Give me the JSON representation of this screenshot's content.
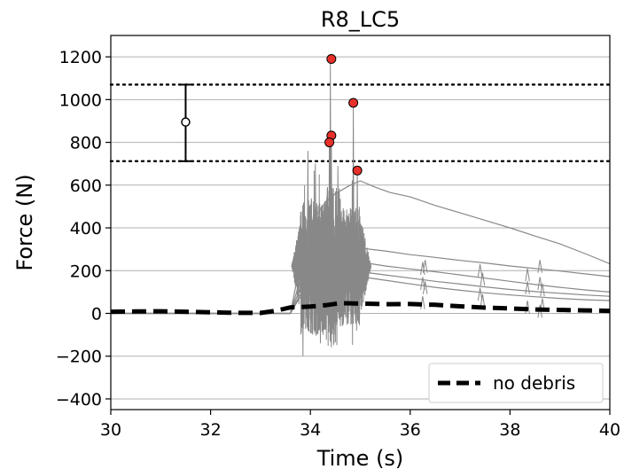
{
  "chart_data": {
    "type": "line",
    "title": "R8_LC5",
    "xlabel": "Time (s)",
    "ylabel": "Force (N)",
    "xlim": [
      30,
      40
    ],
    "ylim": [
      -450,
      1300
    ],
    "xticks": [
      30,
      32,
      34,
      36,
      38,
      40
    ],
    "yticks": [
      -400,
      -200,
      0,
      200,
      400,
      600,
      800,
      1000,
      1200
    ],
    "ytick_labels": [
      "−400",
      "−200",
      "0",
      "200",
      "400",
      "600",
      "800",
      "1000",
      "1200"
    ],
    "grid": "horizontal",
    "legend": {
      "position": "bottom-right",
      "entries": [
        {
          "label": "no debris",
          "style": "dashed",
          "color": "#000000"
        }
      ]
    },
    "reference_lines": [
      {
        "y": 1070,
        "style": "dotted",
        "color": "#000000"
      },
      {
        "y": 712,
        "style": "dotted",
        "color": "#000000"
      }
    ],
    "error_bar": {
      "x": 31.5,
      "y": 895,
      "low": 712,
      "high": 1070,
      "color": "#000000"
    },
    "peak_markers": [
      {
        "x": 34.42,
        "y": 1190
      },
      {
        "x": 34.86,
        "y": 985
      },
      {
        "x": 34.42,
        "y": 832
      },
      {
        "x": 34.38,
        "y": 800
      },
      {
        "x": 34.94,
        "y": 668
      }
    ],
    "colors": {
      "trials": "#888888",
      "no_debris": "#000000",
      "peak_marker": "#e8302a"
    },
    "series": [
      {
        "name": "no debris",
        "x": [
          30,
          30.5,
          31,
          31.5,
          32,
          32.5,
          33,
          33.3,
          33.6,
          34,
          34.3,
          34.6,
          35,
          35.5,
          36,
          36.5,
          37,
          37.5,
          38,
          38.5,
          39,
          39.5,
          40
        ],
        "y": [
          8,
          9,
          10,
          8,
          5,
          3,
          2,
          12,
          28,
          32,
          38,
          48,
          46,
          43,
          44,
          40,
          33,
          27,
          23,
          18,
          16,
          14,
          12
        ]
      },
      {
        "x": [
          30,
          33.6,
          33.75,
          34.0,
          34.3,
          34.5,
          34.8,
          35.0,
          35.3,
          35.6,
          36.0,
          36.5,
          37.0,
          37.5,
          38.0,
          38.5,
          39.0,
          39.5,
          40.0
        ],
        "y": [
          0,
          0,
          180,
          420,
          520,
          560,
          600,
          620,
          590,
          565,
          545,
          505,
          470,
          435,
          400,
          362,
          325,
          280,
          232
        ]
      },
      {
        "x": [
          30,
          33.6,
          33.75,
          34.0,
          34.4,
          34.8,
          35.0,
          35.5,
          36.0,
          36.5,
          37.0,
          37.5,
          38.0,
          38.5,
          39.0,
          39.5,
          40.0
        ],
        "y": [
          0,
          0,
          120,
          250,
          290,
          300,
          305,
          292,
          275,
          262,
          248,
          236,
          222,
          210,
          198,
          185,
          172
        ]
      },
      {
        "x": [
          30,
          33.6,
          33.75,
          34.0,
          34.4,
          34.8,
          35.0,
          35.5,
          36.0,
          36.5,
          37.0,
          37.5,
          38.0,
          38.5,
          39.0,
          39.5,
          40.0
        ],
        "y": [
          0,
          0,
          90,
          200,
          230,
          245,
          240,
          222,
          208,
          195,
          180,
          165,
          150,
          135,
          122,
          110,
          100
        ]
      },
      {
        "x": [
          30,
          33.6,
          33.75,
          34.0,
          34.4,
          34.8,
          35.0,
          35.5,
          36.0,
          36.5,
          37.0,
          37.5,
          38.0,
          38.5,
          39.0,
          39.5,
          40.0
        ],
        "y": [
          0,
          0,
          70,
          160,
          190,
          200,
          195,
          180,
          165,
          150,
          137,
          124,
          112,
          102,
          94,
          86,
          80
        ]
      },
      {
        "x": [
          30,
          33.6,
          33.75,
          34.0,
          34.4,
          34.8,
          35.0,
          35.5,
          36.0,
          36.5,
          37.0,
          37.5,
          38.0,
          38.5,
          39.0,
          39.5,
          40.0
        ],
        "y": [
          0,
          0,
          60,
          140,
          175,
          180,
          172,
          155,
          138,
          122,
          108,
          96,
          86,
          78,
          70,
          64,
          60
        ]
      }
    ]
  }
}
